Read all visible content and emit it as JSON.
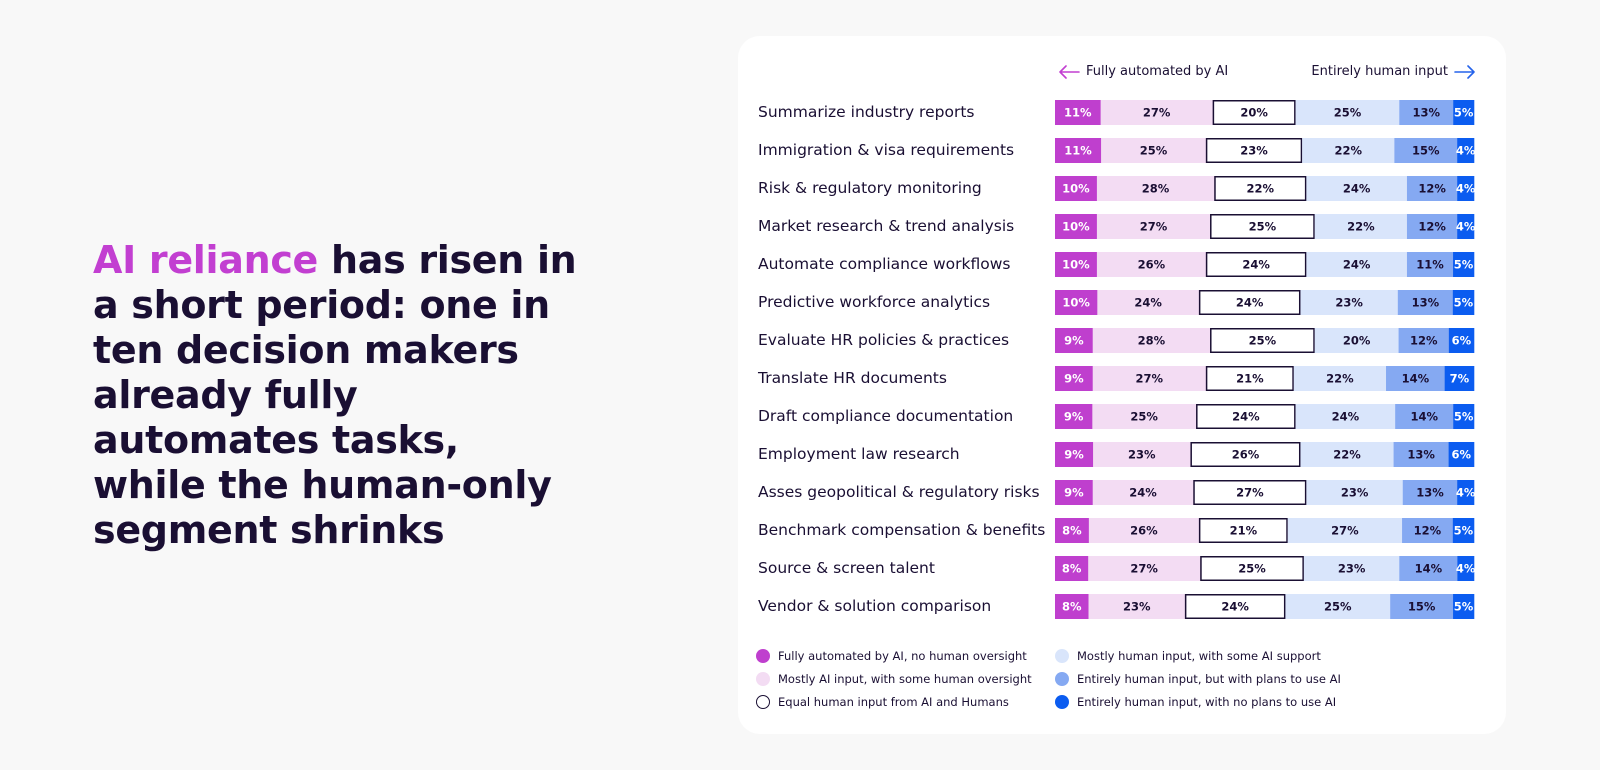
{
  "headline": {
    "highlight": "AI reliance",
    "rest": " has risen in a short period: one in ten decision makers already fully automates tasks, while the human-only segment shrinks"
  },
  "direction": {
    "left": "Fully automated by AI",
    "right": "Entirely human input"
  },
  "colors": {
    "accent": "#c23fd1",
    "text": "#1a0f33",
    "card_bg": "#ffffff",
    "page_bg": "#f8f8f8"
  },
  "legend": [
    {
      "label": "Fully automated by AI, no human oversight",
      "color": "#bf3fce",
      "outline": false
    },
    {
      "label": "Mostly AI input, with some human oversight",
      "color": "#f3dcf3",
      "outline": false
    },
    {
      "label": "Equal human input from AI and Humans",
      "color": "#ffffff",
      "outline": true
    },
    {
      "label": "Mostly human input, with some AI support",
      "color": "#d9e5fb",
      "outline": false
    },
    {
      "label": "Entirely human input, but with plans to use AI",
      "color": "#85a9f2",
      "outline": false
    },
    {
      "label": "Entirely human input, with no plans to use AI",
      "color": "#0b5cf0",
      "outline": false
    }
  ],
  "chart_data": {
    "type": "bar",
    "orientation": "horizontal",
    "stacked": true,
    "normalized_percent": true,
    "categories": [
      "Summarize industry reports",
      "Immigration & visa requirements",
      "Risk & regulatory monitoring",
      "Market research & trend analysis",
      "Automate compliance workflows",
      "Predictive workforce analytics",
      "Evaluate HR policies & practices",
      "Translate HR documents",
      "Draft compliance documentation",
      "Employment law research",
      "Asses geopolitical & regulatory risks",
      "Benchmark compensation & benefits",
      "Source & screen talent",
      "Vendor & solution comparison"
    ],
    "series": [
      {
        "name": "Fully automated by AI, no human oversight",
        "color": "#bf3fce",
        "label_color": "#ffffff",
        "values": [
          11,
          11,
          10,
          10,
          10,
          10,
          9,
          9,
          9,
          9,
          9,
          8,
          8,
          8
        ]
      },
      {
        "name": "Mostly AI input, with some human oversight",
        "color": "#f3dcf3",
        "label_color": "#1a0f33",
        "values": [
          27,
          25,
          28,
          27,
          26,
          24,
          28,
          27,
          25,
          23,
          24,
          26,
          27,
          23
        ]
      },
      {
        "name": "Equal human input from AI and Humans",
        "color": "#ffffff",
        "label_color": "#1a0f33",
        "outline": true,
        "values": [
          20,
          23,
          22,
          25,
          24,
          24,
          25,
          21,
          24,
          26,
          27,
          21,
          25,
          24
        ]
      },
      {
        "name": "Mostly human input, with some AI support",
        "color": "#d9e5fb",
        "label_color": "#1a0f33",
        "values": [
          25,
          22,
          24,
          22,
          24,
          23,
          20,
          22,
          24,
          22,
          23,
          27,
          23,
          25
        ]
      },
      {
        "name": "Entirely human input, but with plans to use AI",
        "color": "#85a9f2",
        "label_color": "#1a0f33",
        "values": [
          13,
          15,
          12,
          12,
          11,
          13,
          12,
          14,
          14,
          13,
          13,
          12,
          14,
          15
        ]
      },
      {
        "name": "Entirely human input, with no plans to use AI",
        "color": "#0b5cf0",
        "label_color": "#ffffff",
        "values": [
          5,
          4,
          4,
          4,
          5,
          5,
          6,
          7,
          5,
          6,
          4,
          5,
          4,
          5
        ]
      }
    ],
    "unit": "%",
    "legend_position": "bottom",
    "grid": false
  }
}
